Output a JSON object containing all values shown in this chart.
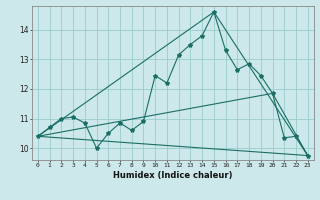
{
  "title": "",
  "xlabel": "Humidex (Indice chaleur)",
  "bg_color": "#cce8ea",
  "grid_color": "#99cccc",
  "line_color": "#1a6e65",
  "xlim": [
    -0.5,
    23.5
  ],
  "ylim": [
    9.6,
    14.8
  ],
  "yticks": [
    10,
    11,
    12,
    13,
    14
  ],
  "xticks": [
    0,
    1,
    2,
    3,
    4,
    5,
    6,
    7,
    8,
    9,
    10,
    11,
    12,
    13,
    14,
    15,
    16,
    17,
    18,
    19,
    20,
    21,
    22,
    23
  ],
  "series1_x": [
    0,
    1,
    2,
    3,
    4,
    5,
    6,
    7,
    8,
    9,
    10,
    11,
    12,
    13,
    14,
    15,
    16,
    17,
    18,
    19,
    20,
    21,
    22,
    23
  ],
  "series1_y": [
    10.4,
    10.7,
    11.0,
    11.05,
    10.85,
    10.0,
    10.5,
    10.85,
    10.6,
    10.9,
    12.45,
    12.2,
    13.15,
    13.5,
    13.8,
    14.6,
    13.3,
    12.65,
    12.85,
    12.45,
    11.85,
    10.35,
    10.4,
    9.75
  ],
  "series2_x": [
    0,
    15,
    23
  ],
  "series2_y": [
    10.4,
    14.6,
    9.75
  ],
  "series3_x": [
    0,
    20,
    23
  ],
  "series3_y": [
    10.4,
    11.85,
    9.75
  ],
  "series4_x": [
    0,
    23
  ],
  "series4_y": [
    10.4,
    9.75
  ]
}
